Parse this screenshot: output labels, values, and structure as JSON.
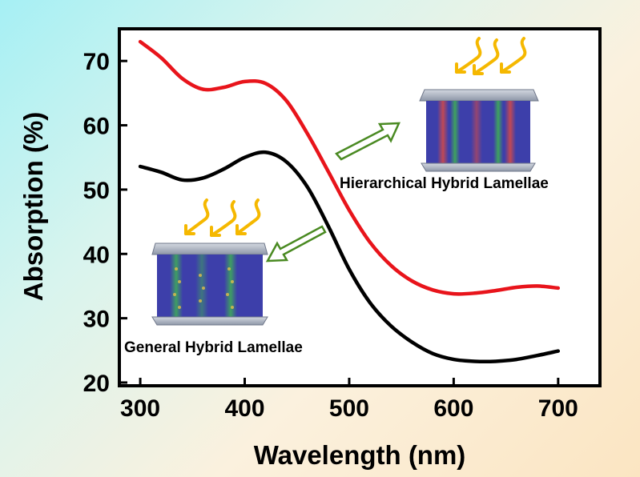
{
  "chart_data": {
    "type": "line",
    "xlabel": "Wavelength (nm)",
    "ylabel": "Absorption (%)",
    "xlim": [
      280,
      740
    ],
    "ylim": [
      19.5,
      75
    ],
    "x_ticks": [
      "300",
      "400",
      "500",
      "600",
      "700"
    ],
    "y_ticks": [
      "20",
      "30",
      "40",
      "50",
      "60",
      "70"
    ],
    "grid": false,
    "series": [
      {
        "color": "#e8141b",
        "x": [
          300,
          320,
          340,
          360,
          380,
          400,
          420,
          440,
          460,
          480,
          500,
          520,
          540,
          560,
          580,
          600,
          620,
          640,
          660,
          680,
          700
        ],
        "values": [
          73.0,
          70.5,
          67.3,
          65.6,
          65.9,
          66.8,
          66.5,
          63.8,
          58.7,
          52.8,
          46.8,
          41.8,
          38.2,
          35.8,
          34.4,
          33.8,
          33.9,
          34.3,
          34.8,
          35.0,
          34.7
        ]
      },
      {
        "color": "#000000",
        "x": [
          300,
          320,
          340,
          360,
          380,
          400,
          420,
          440,
          460,
          480,
          500,
          520,
          540,
          560,
          580,
          600,
          620,
          640,
          660,
          680,
          700
        ],
        "values": [
          53.6,
          52.7,
          51.5,
          51.8,
          53.2,
          55.0,
          55.8,
          54.3,
          50.4,
          44.3,
          37.6,
          32.4,
          28.8,
          26.3,
          24.5,
          23.6,
          23.3,
          23.3,
          23.6,
          24.2,
          24.9
        ]
      }
    ],
    "annotations": [
      {
        "text": "Hierarchical Hybrid Lamellae"
      },
      {
        "text": "General Hybrid Lamellae"
      }
    ]
  },
  "colors": {
    "sunray": "#f5b800",
    "arrow_outline": "#4a8a22",
    "lamella_blue": "#3d3faa",
    "lamella_green": "#3fae56",
    "lamella_red": "#d04a4a",
    "plate": "#aab4c4"
  }
}
